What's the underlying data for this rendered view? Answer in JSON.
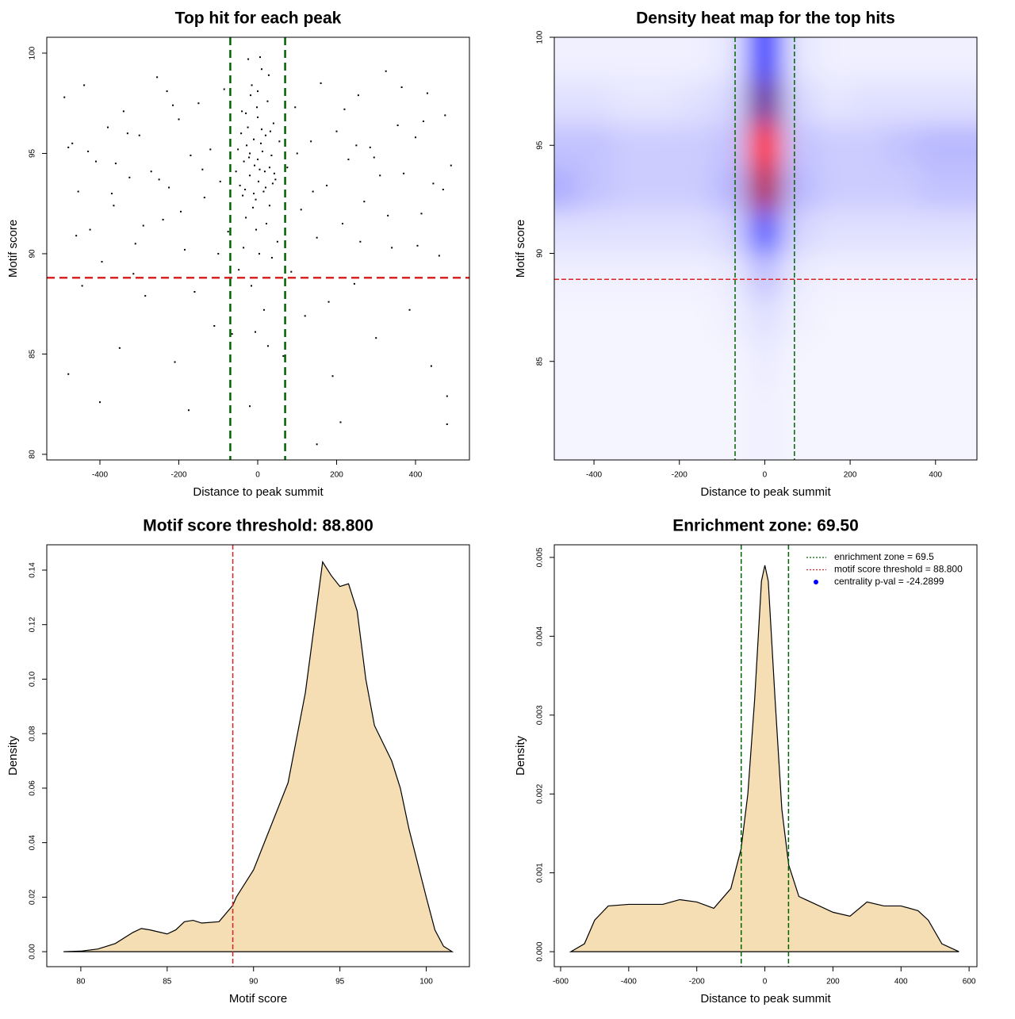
{
  "chart_data": [
    {
      "type": "scatter",
      "title": "Top hit for each peak",
      "xlabel": "Distance to peak summit",
      "ylabel": "Motif score",
      "xlim": [
        -534.7,
        536.7
      ],
      "ylim": [
        79.72,
        100.79
      ],
      "xticks": [
        -400,
        -200,
        0,
        200,
        400
      ],
      "yticks": [
        80,
        85,
        90,
        95,
        100
      ],
      "color": "#000000",
      "vlines": [
        -69.5,
        69.5
      ],
      "vline_color": "#006400",
      "hlines": [
        88.8
      ],
      "hline_color": "#dd2222",
      "x": [
        -490,
        -470,
        -455,
        -440,
        -425,
        -410,
        -395,
        -380,
        -365,
        -350,
        -340,
        -325,
        -310,
        -300,
        -285,
        -270,
        -255,
        -240,
        -225,
        -210,
        -200,
        -185,
        -170,
        -160,
        -150,
        -135,
        -120,
        -110,
        -95,
        -85,
        -75,
        75,
        85,
        95,
        110,
        120,
        135,
        150,
        160,
        175,
        190,
        200,
        215,
        230,
        245,
        255,
        270,
        285,
        300,
        310,
        325,
        340,
        355,
        370,
        385,
        400,
        415,
        430,
        445,
        460,
        475,
        490,
        -480,
        -460,
        -430,
        -400,
        -370,
        -330,
        -290,
        -250,
        -215,
        -175,
        -140,
        -100,
        100,
        140,
        180,
        220,
        260,
        295,
        330,
        365,
        405,
        440,
        470,
        480,
        -445,
        -315,
        -195,
        -65,
        65,
        210,
        150,
        -20,
        480,
        -230,
        250,
        420,
        -480,
        -360,
        -50,
        -45,
        -40,
        -35,
        -30,
        -25,
        -20,
        -15,
        -10,
        -5,
        0,
        5,
        10,
        15,
        20,
        25,
        30,
        35,
        40,
        45,
        50,
        -48,
        -38,
        -28,
        -18,
        -8,
        2,
        12,
        22,
        32,
        42,
        -42,
        -32,
        -22,
        -12,
        -2,
        8,
        18,
        28,
        38,
        -55,
        55,
        -24,
        6,
        -16,
        16,
        -6,
        26,
        -36,
        36,
        0,
        -10,
        10,
        -20,
        20,
        -4,
        4,
        -30,
        30,
        0
      ],
      "values": [
        97.8,
        95.5,
        93.1,
        98.4,
        91.2,
        94.6,
        89.6,
        96.3,
        92.4,
        85.3,
        97.1,
        93.8,
        90.5,
        95.9,
        87.9,
        94.1,
        98.8,
        91.7,
        93.3,
        84.6,
        96.7,
        90.2,
        94.9,
        88.1,
        97.5,
        92.8,
        95.2,
        86.4,
        93.6,
        98.2,
        91.1,
        94.3,
        89.1,
        97.3,
        92.2,
        86.9,
        95.6,
        90.8,
        98.5,
        93.4,
        83.9,
        96.1,
        91.5,
        94.7,
        88.5,
        97.9,
        92.6,
        95.3,
        85.8,
        93.9,
        99.1,
        90.3,
        96.4,
        94.0,
        87.2,
        95.8,
        92.0,
        98.0,
        93.5,
        89.9,
        96.9,
        94.4,
        84.0,
        90.9,
        95.1,
        82.6,
        93.0,
        96.0,
        91.4,
        93.7,
        97.4,
        82.2,
        94.2,
        90.0,
        95.0,
        93.1,
        87.6,
        97.2,
        90.6,
        94.8,
        91.9,
        98.3,
        90.4,
        84.4,
        93.2,
        82.9,
        88.4,
        89.0,
        92.1,
        86.0,
        84.9,
        81.6,
        80.5,
        82.4,
        81.5,
        98.1,
        95.4,
        96.6,
        95.3,
        94.5,
        95.2,
        93.4,
        97.1,
        94.6,
        91.8,
        96.3,
        93.9,
        98.4,
        95.7,
        92.7,
        96.8,
        94.2,
        99.2,
        93.1,
        95.9,
        97.6,
        92.4,
        94.9,
        96.5,
        93.7,
        90.6,
        89.2,
        92.9,
        95.4,
        97.9,
        94.4,
        93.6,
        95.1,
        91.5,
        96.1,
        94.0,
        96.0,
        93.2,
        94.8,
        92.3,
        97.3,
        95.5,
        94.1,
        98.9,
        93.5,
        94.1,
        95.6,
        99.7,
        99.8,
        88.4,
        87.2,
        86.1,
        85.4,
        90.3,
        89.8,
        94.7,
        93.0,
        96.2,
        95.0,
        93.3,
        91.2,
        90.0,
        97.0,
        94.3,
        98.1
      ]
    },
    {
      "type": "heatmap",
      "title": "Density heat map for the top hits",
      "xlabel": "Distance to peak summit",
      "ylabel": "Motif score",
      "xlim": [
        -493,
        497
      ],
      "ylim": [
        80.44,
        100
      ],
      "xticks": [
        -400,
        -200,
        0,
        200,
        400
      ],
      "yticks": [
        85,
        90,
        95,
        100
      ],
      "colormap": [
        "#ffffff",
        "#0000ff",
        "#ff0000"
      ],
      "vlines": [
        -69.5,
        69.5
      ],
      "vline_color": "#006400",
      "hlines": [
        88.8
      ],
      "hline_color": "#dd2222",
      "x": [
        -480,
        -400,
        -320,
        -240,
        -160,
        -80,
        0,
        80,
        160,
        240,
        320,
        400,
        480
      ],
      "y": [
        81,
        83,
        85,
        87,
        89,
        91,
        93,
        95,
        97,
        99
      ],
      "z": [
        [
          0.02,
          0.02,
          0.02,
          0.02,
          0.02,
          0.02,
          0.03,
          0.02,
          0.02,
          0.02,
          0.02,
          0.02,
          0.02
        ],
        [
          0.02,
          0.02,
          0.02,
          0.02,
          0.02,
          0.02,
          0.03,
          0.02,
          0.02,
          0.02,
          0.02,
          0.02,
          0.02
        ],
        [
          0.02,
          0.02,
          0.02,
          0.02,
          0.02,
          0.02,
          0.04,
          0.02,
          0.02,
          0.02,
          0.02,
          0.02,
          0.02
        ],
        [
          0.02,
          0.02,
          0.02,
          0.02,
          0.02,
          0.03,
          0.06,
          0.03,
          0.02,
          0.02,
          0.02,
          0.02,
          0.02
        ],
        [
          0.03,
          0.03,
          0.03,
          0.03,
          0.03,
          0.04,
          0.12,
          0.04,
          0.03,
          0.03,
          0.03,
          0.03,
          0.03
        ],
        [
          0.06,
          0.06,
          0.06,
          0.06,
          0.06,
          0.08,
          0.32,
          0.08,
          0.06,
          0.06,
          0.06,
          0.06,
          0.06
        ],
        [
          0.16,
          0.12,
          0.1,
          0.1,
          0.1,
          0.14,
          0.85,
          0.14,
          0.1,
          0.1,
          0.1,
          0.12,
          0.12
        ],
        [
          0.12,
          0.12,
          0.1,
          0.1,
          0.1,
          0.12,
          1.0,
          0.12,
          0.1,
          0.1,
          0.12,
          0.14,
          0.14
        ],
        [
          0.06,
          0.06,
          0.05,
          0.05,
          0.06,
          0.08,
          0.7,
          0.08,
          0.05,
          0.06,
          0.06,
          0.06,
          0.06
        ],
        [
          0.03,
          0.03,
          0.03,
          0.03,
          0.03,
          0.05,
          0.45,
          0.05,
          0.03,
          0.03,
          0.03,
          0.03,
          0.03
        ]
      ]
    },
    {
      "type": "area",
      "title": "Motif score threshold: 88.800",
      "xlabel": "Motif score",
      "ylabel": "Density",
      "xlim": [
        78.03,
        102.5
      ],
      "ylim": [
        -0.0055,
        0.1493
      ],
      "xticks": [
        80,
        85,
        90,
        95,
        100
      ],
      "yticks": [
        {
          "value": 0,
          "label": "0.00"
        },
        0.02,
        0.04,
        0.06,
        0.08,
        {
          "value": 0.1,
          "label": "0.10"
        },
        0.12,
        0.14
      ],
      "color": "#f5deb3",
      "vlines": [
        88.8
      ],
      "vline_color": "#dd2222",
      "x": [
        79,
        80,
        81,
        82,
        83,
        83.5,
        84,
        85,
        85.5,
        86,
        86.5,
        87,
        88,
        88.8,
        89,
        90,
        91,
        92,
        93,
        94,
        94.5,
        95,
        95.5,
        96,
        96.5,
        97,
        98,
        98.5,
        99,
        100,
        100.5,
        101,
        101.5
      ],
      "values": [
        0,
        0.0002,
        0.001,
        0.003,
        0.007,
        0.0085,
        0.008,
        0.0065,
        0.008,
        0.011,
        0.0115,
        0.0105,
        0.011,
        0.017,
        0.02,
        0.03,
        0.046,
        0.062,
        0.095,
        0.143,
        0.138,
        0.134,
        0.135,
        0.125,
        0.1,
        0.083,
        0.07,
        0.06,
        0.045,
        0.02,
        0.008,
        0.002,
        0
      ]
    },
    {
      "type": "area",
      "title": "Enrichment zone: 69.50",
      "xlabel": "Distance to peak summit",
      "ylabel": "Density",
      "xlim": [
        -618.6,
        623
      ],
      "ylim": [
        -0.00019,
        0.00516
      ],
      "xticks": [
        -600,
        -400,
        -200,
        0,
        200,
        400,
        600
      ],
      "yticks": [
        {
          "value": 0,
          "label": "0.000"
        },
        0.001,
        0.002,
        0.003,
        0.004,
        0.005
      ],
      "color": "#f5deb3",
      "vlines": [
        -69.5,
        69.5
      ],
      "vline_color": "#006400",
      "legend_position": "top-right",
      "legend": [
        {
          "name": "enrichment zone = 69.5",
          "color": "#006400",
          "style": "dotted"
        },
        {
          "name": "motif score threshold = 88.800",
          "color": "#dd2222",
          "style": "dotted"
        },
        {
          "name": "centrality p-val = -24.2899",
          "color": "#0000ff",
          "style": "point"
        }
      ],
      "x": [
        -570,
        -530,
        -500,
        -460,
        -400,
        -300,
        -250,
        -200,
        -150,
        -100,
        -70,
        -50,
        -30,
        -10,
        0,
        10,
        30,
        50,
        70,
        100,
        150,
        200,
        250,
        300,
        350,
        400,
        450,
        480,
        520,
        570
      ],
      "values": [
        0,
        0.0001,
        0.0004,
        0.00058,
        0.0006,
        0.0006,
        0.00066,
        0.00063,
        0.00055,
        0.0008,
        0.0013,
        0.002,
        0.0032,
        0.0047,
        0.0049,
        0.0047,
        0.0032,
        0.0018,
        0.0011,
        0.0007,
        0.0006,
        0.0005,
        0.00045,
        0.00063,
        0.00058,
        0.00058,
        0.00052,
        0.0004,
        0.0001,
        0
      ]
    }
  ]
}
